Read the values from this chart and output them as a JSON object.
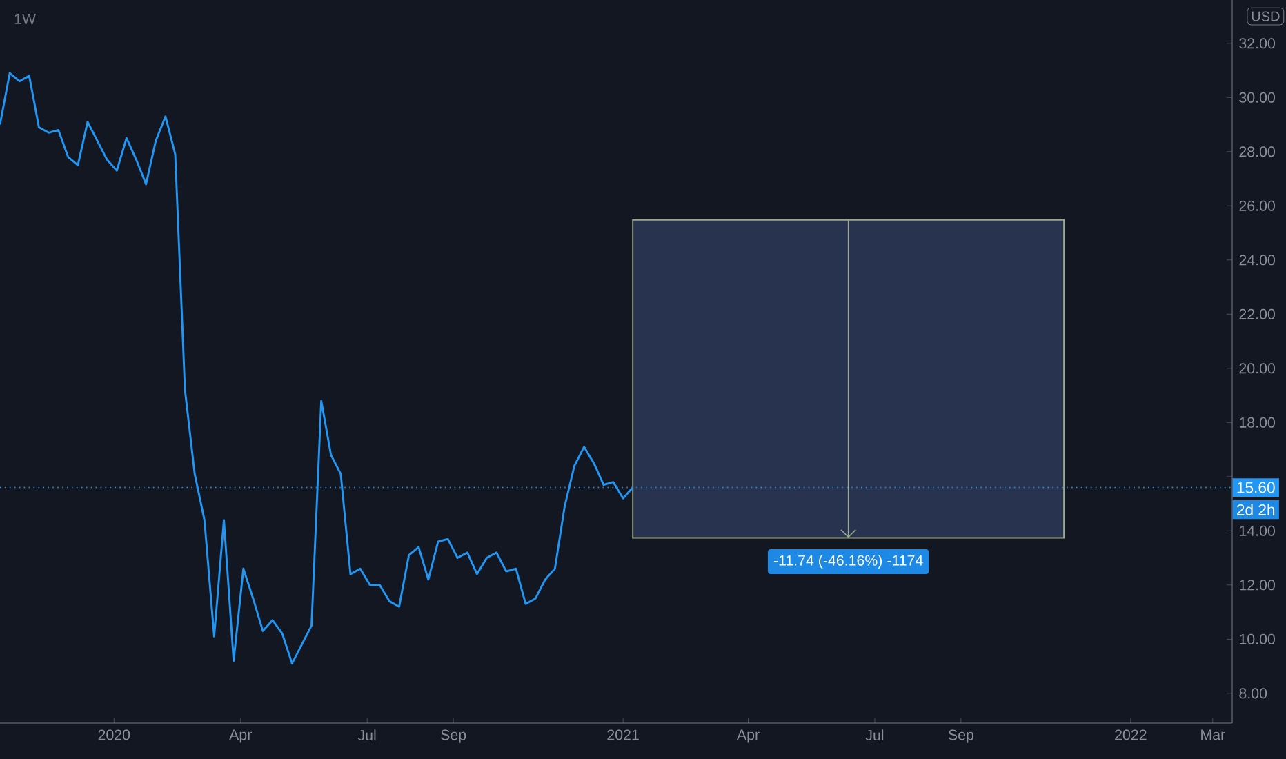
{
  "chart_data": {
    "type": "line",
    "title": "1W",
    "ylabel": "USD",
    "x": [
      "2019-10-11",
      "2019-10-18",
      "2019-10-25",
      "2019-11-01",
      "2019-11-08",
      "2019-11-15",
      "2019-11-22",
      "2019-11-29",
      "2019-12-06",
      "2019-12-13",
      "2019-12-20",
      "2019-12-27",
      "2020-01-03",
      "2020-01-10",
      "2020-01-17",
      "2020-01-24",
      "2020-01-31",
      "2020-02-07",
      "2020-02-14",
      "2020-02-21",
      "2020-02-28",
      "2020-03-06",
      "2020-03-13",
      "2020-03-20",
      "2020-03-27",
      "2020-04-03",
      "2020-04-10",
      "2020-04-17",
      "2020-04-24",
      "2020-05-01",
      "2020-05-08",
      "2020-05-15",
      "2020-05-22",
      "2020-05-29",
      "2020-06-05",
      "2020-06-12",
      "2020-06-19",
      "2020-06-26",
      "2020-07-03",
      "2020-07-10",
      "2020-07-17",
      "2020-07-24",
      "2020-07-31",
      "2020-08-07",
      "2020-08-14",
      "2020-08-21",
      "2020-08-28",
      "2020-09-04",
      "2020-09-11",
      "2020-09-18",
      "2020-09-25",
      "2020-10-02",
      "2020-10-09",
      "2020-10-16",
      "2020-10-23",
      "2020-10-30",
      "2020-11-06",
      "2020-11-13",
      "2020-11-20",
      "2020-11-27",
      "2020-12-04",
      "2020-12-11",
      "2020-12-18",
      "2020-12-25",
      "2021-01-01",
      "2021-01-08"
    ],
    "series": [
      {
        "color": "#2196f3",
        "values": [
          29.0,
          30.9,
          30.6,
          30.8,
          28.9,
          28.7,
          28.8,
          27.8,
          27.5,
          29.1,
          28.4,
          27.7,
          27.3,
          28.5,
          27.7,
          26.8,
          28.4,
          29.3,
          27.9,
          19.2,
          16.1,
          14.4,
          10.1,
          14.4,
          9.2,
          12.6,
          11.5,
          10.3,
          10.7,
          10.2,
          9.1,
          9.8,
          10.5,
          18.8,
          16.8,
          16.1,
          12.4,
          12.6,
          12.0,
          12.0,
          11.4,
          11.2,
          13.1,
          13.4,
          12.2,
          13.6,
          13.7,
          13.0,
          13.2,
          12.4,
          13.0,
          13.2,
          12.5,
          12.6,
          11.3,
          11.5,
          12.2,
          12.6,
          14.9,
          16.4,
          17.1,
          16.5,
          15.7,
          15.8,
          15.2,
          15.6
        ]
      }
    ],
    "xlim": [
      "2019-10-11",
      "2022-03-15"
    ],
    "xticks": [
      {
        "value": "2020-01-01",
        "label": "2020"
      },
      {
        "value": "2020-04-01",
        "label": "Apr"
      },
      {
        "value": "2020-07-01",
        "label": "Jul"
      },
      {
        "value": "2020-09-01",
        "label": "Sep"
      },
      {
        "value": "2021-01-01",
        "label": "2021"
      },
      {
        "value": "2021-04-01",
        "label": "Apr"
      },
      {
        "value": "2021-07-01",
        "label": "Jul"
      },
      {
        "value": "2021-09-01",
        "label": "Sep"
      },
      {
        "value": "2022-01-01",
        "label": "2022"
      },
      {
        "value": "2022-03-01",
        "label": "Mar"
      }
    ],
    "ylim": [
      6.9,
      33.6
    ],
    "yticks": [
      {
        "value": 8,
        "label": "8.00"
      },
      {
        "value": 10,
        "label": "10.00"
      },
      {
        "value": 12,
        "label": "12.00"
      },
      {
        "value": 14,
        "label": "14.00"
      },
      {
        "value": 16,
        "label": null
      },
      {
        "value": 18,
        "label": "18.00"
      },
      {
        "value": 20,
        "label": "20.00"
      },
      {
        "value": 22,
        "label": "22.00"
      },
      {
        "value": 24,
        "label": "24.00"
      },
      {
        "value": 26,
        "label": "26.00"
      },
      {
        "value": 28,
        "label": "28.00"
      },
      {
        "value": 30,
        "label": "30.00"
      },
      {
        "value": 32,
        "label": "32.00"
      }
    ],
    "ref_lines": [
      {
        "axis": "y",
        "value": 15.6,
        "label": "15.60",
        "color": "#2196f3",
        "line_style": "dotted"
      }
    ],
    "bands": [
      {
        "axis": "y",
        "from": 13.74,
        "to": 25.48,
        "color": "#283350"
      }
    ],
    "annotations": [
      {
        "text": "-11.74 (-46.16%) -1174",
        "x": "2021-06-12",
        "y": 13.74
      },
      "2d 2h"
    ]
  }
}
